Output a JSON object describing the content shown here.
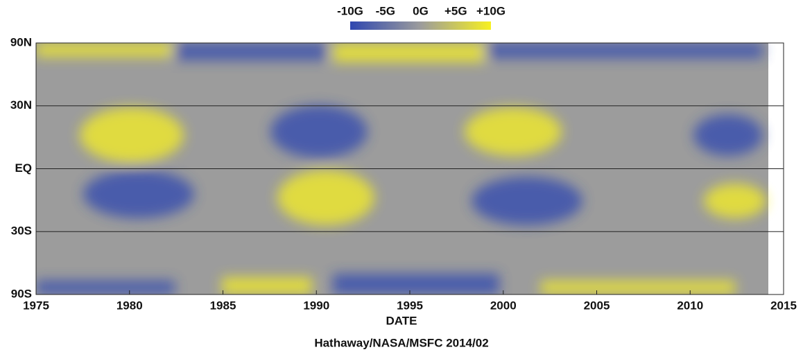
{
  "chart_data": {
    "type": "heatmap",
    "xlabel": "DATE",
    "credit": "Hathaway/NASA/MSFC 2014/02",
    "xlim": [
      1975,
      2015
    ],
    "xticks": [
      1975,
      1980,
      1985,
      1990,
      1995,
      2000,
      2005,
      2010,
      2015
    ],
    "yscale": "sine",
    "ylim": [
      -90,
      90
    ],
    "yticks": [
      {
        "value": 90,
        "label": "90N"
      },
      {
        "value": 30,
        "label": "30N"
      },
      {
        "value": 0,
        "label": "EQ"
      },
      {
        "value": -30,
        "label": "30S"
      },
      {
        "value": -90,
        "label": "90S"
      }
    ],
    "grid": true,
    "colorbar": {
      "lim": [
        -10,
        10
      ],
      "ticks": [
        {
          "value": -10,
          "label": "-10G"
        },
        {
          "value": -5,
          "label": "-5G"
        },
        {
          "value": 0,
          "label": "0G"
        },
        {
          "value": 5,
          "label": "+5G"
        },
        {
          "value": 10,
          "label": "+10G"
        }
      ],
      "colors": [
        "#2f47b0",
        "#9c9c9c",
        "#f7f020"
      ]
    }
  }
}
